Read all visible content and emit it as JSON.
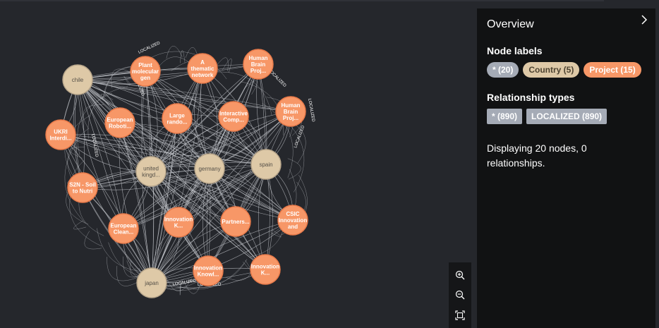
{
  "panel": {
    "title": "Overview",
    "node_labels_heading": "Node labels",
    "node_labels": [
      {
        "text": "* (20)",
        "kind": "all"
      },
      {
        "text": "Country (5)",
        "kind": "country"
      },
      {
        "text": "Project (15)",
        "kind": "project"
      }
    ],
    "relationship_heading": "Relationship types",
    "relationship_types": [
      {
        "text": "* (890)"
      },
      {
        "text": "LOCALIZED (890)"
      }
    ],
    "status": "Displaying 20 nodes, 0 relationships."
  },
  "colors": {
    "country": "#dec9a7",
    "project": "#f79767",
    "edge": "#c8cbd0",
    "background": "#25272c",
    "panel": "#111213"
  },
  "icons": {
    "zoom_in": "zoom-in-icon",
    "zoom_out": "zoom-out-icon",
    "fit": "fit-screen-icon",
    "close": "chevron-right-icon"
  },
  "edge_label": "LOCALIZED",
  "graph": {
    "countries": [
      {
        "id": "chile",
        "lines": [
          "chile"
        ]
      },
      {
        "id": "uk",
        "lines": [
          "united",
          "kingd..."
        ]
      },
      {
        "id": "germany",
        "lines": [
          "germany"
        ]
      },
      {
        "id": "spain",
        "lines": [
          "spain"
        ]
      },
      {
        "id": "japan",
        "lines": [
          "japan"
        ]
      }
    ],
    "projects": [
      {
        "id": "p1",
        "lines": [
          "Plant",
          "molecular",
          "gen"
        ]
      },
      {
        "id": "p2",
        "lines": [
          "A",
          "thematic",
          "network"
        ]
      },
      {
        "id": "p3",
        "lines": [
          "Human",
          "Brain",
          "Proj..."
        ]
      },
      {
        "id": "p4",
        "lines": [
          "Human",
          "Brain",
          "Proj..."
        ]
      },
      {
        "id": "p5",
        "lines": [
          "UKRI",
          "Interdi..."
        ]
      },
      {
        "id": "p6",
        "lines": [
          "European",
          "Roboti..."
        ]
      },
      {
        "id": "p7",
        "lines": [
          "Large",
          "rando..."
        ]
      },
      {
        "id": "p8",
        "lines": [
          "Interactive",
          "Comp..."
        ]
      },
      {
        "id": "p9",
        "lines": [
          "S2N - Soil",
          "to Nutri"
        ]
      },
      {
        "id": "p10",
        "lines": [
          "European",
          "Clean..."
        ]
      },
      {
        "id": "p11",
        "lines": [
          "Innovation",
          "K..."
        ]
      },
      {
        "id": "p12",
        "lines": [
          "Partners..."
        ]
      },
      {
        "id": "p13",
        "lines": [
          "CSIC",
          "Innovation",
          "and"
        ]
      },
      {
        "id": "p14",
        "lines": [
          "Innovation",
          "Knowl..."
        ]
      },
      {
        "id": "p15",
        "lines": [
          "Innovation",
          "K..."
        ]
      }
    ]
  }
}
